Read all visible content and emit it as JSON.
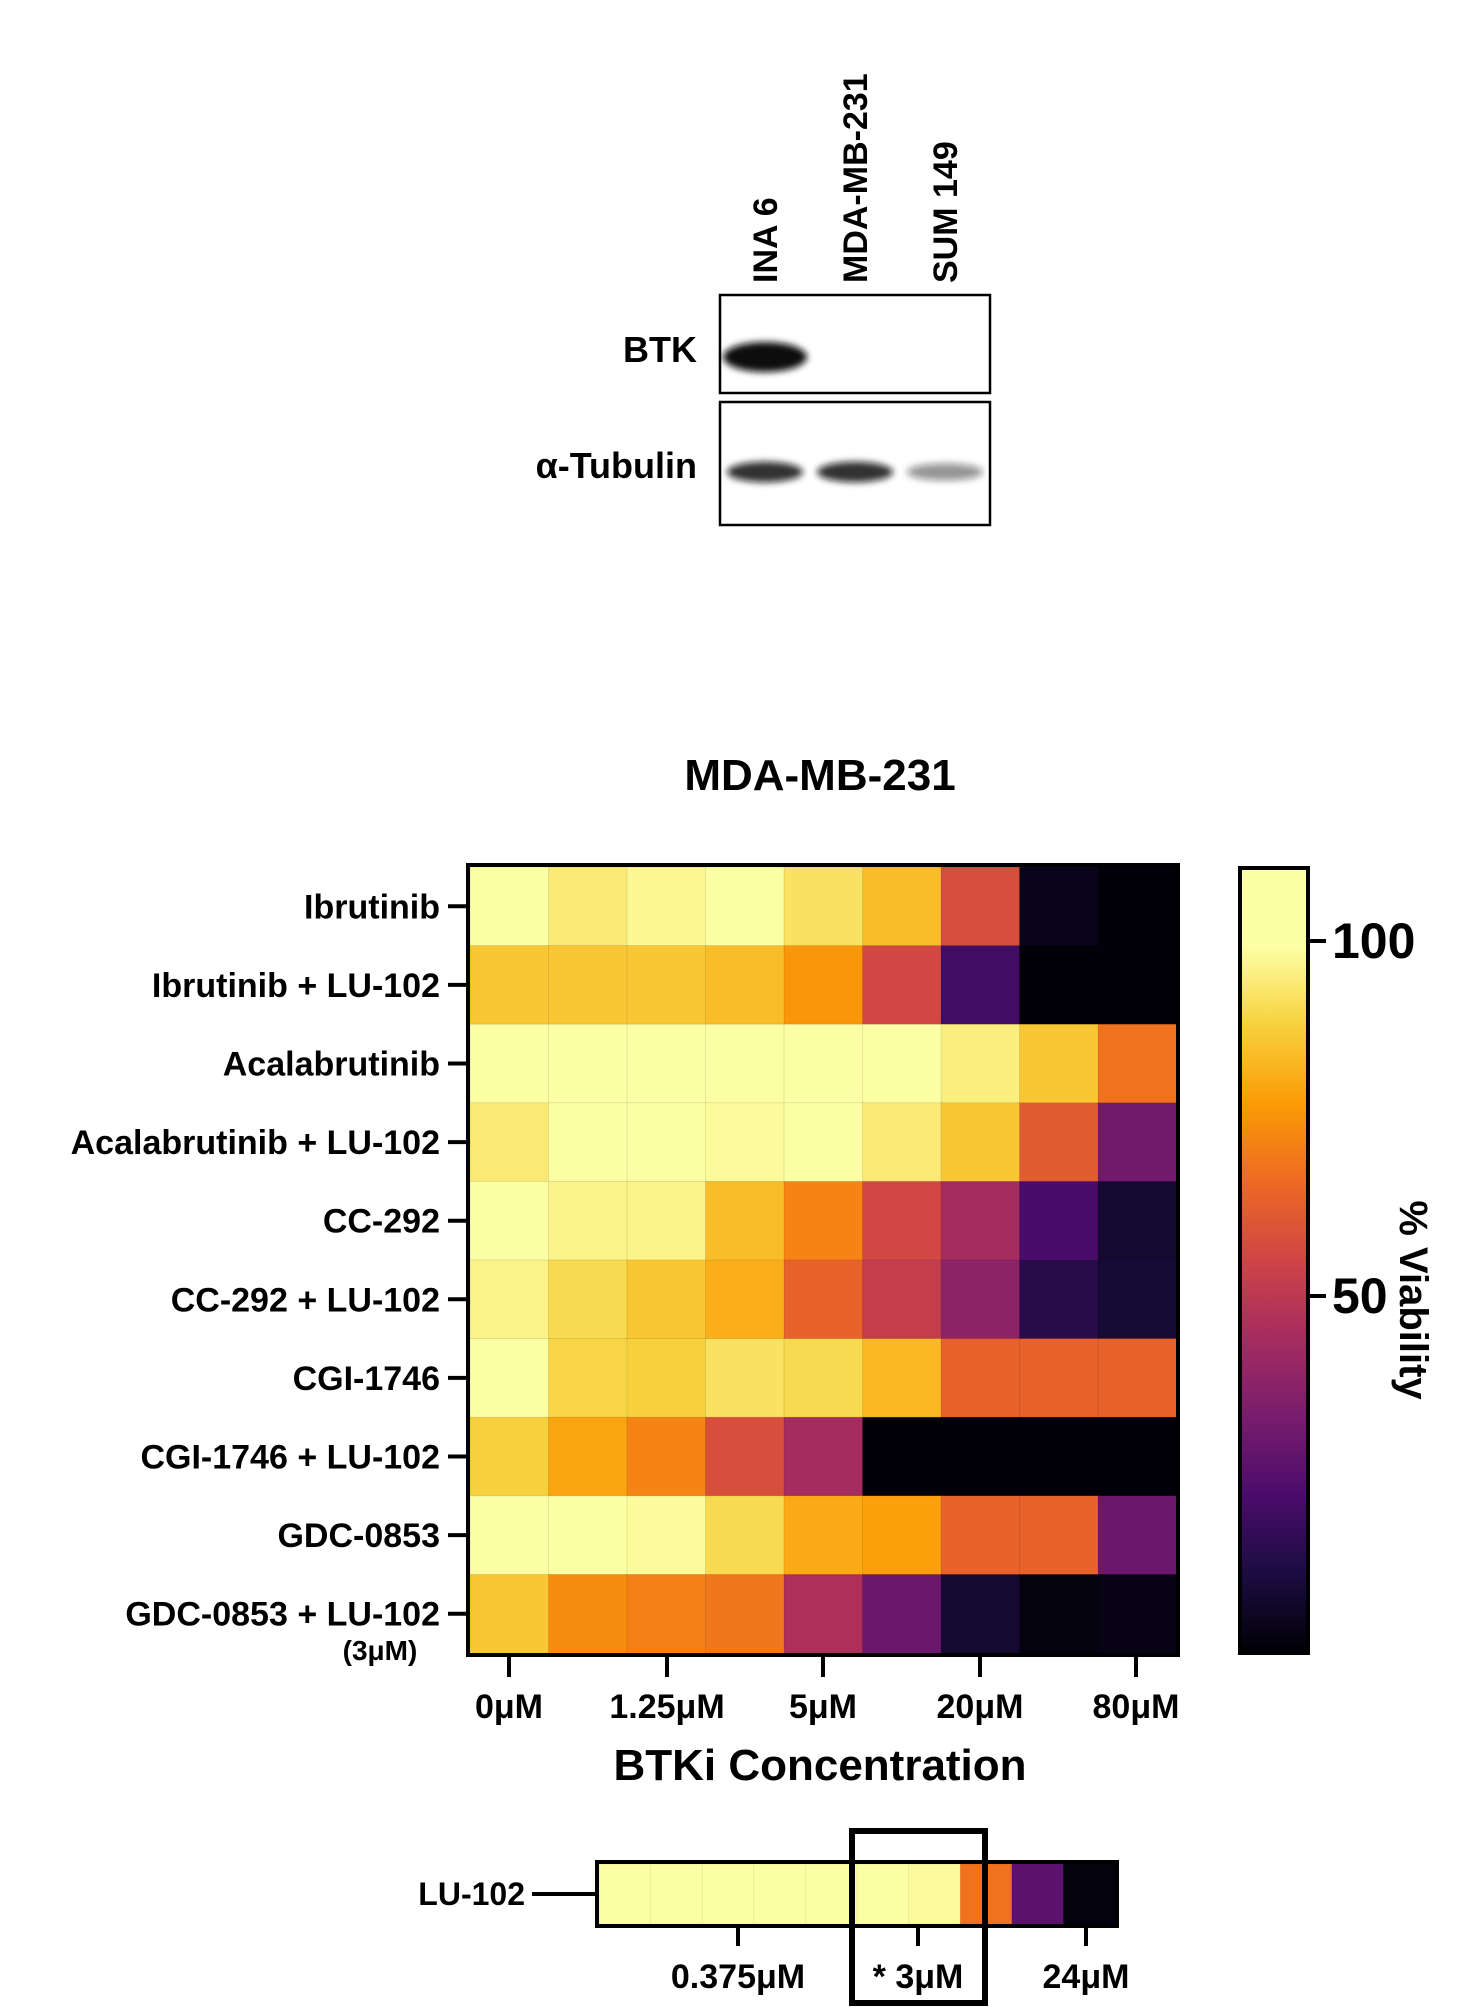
{
  "western_blot": {
    "lanes": [
      "INA 6",
      "MDA-MB-231",
      "SUM 149"
    ],
    "rows": [
      {
        "label": "BTK",
        "band_intensity": [
          1.0,
          0.0,
          0.0
        ]
      },
      {
        "label": "α-Tubulin",
        "band_intensity": [
          0.85,
          0.85,
          0.45
        ]
      }
    ]
  },
  "chart_data": [
    {
      "type": "heatmap",
      "title": "MDA-MB-231",
      "xlabel": "BTKi Concentration",
      "x_tick_labels": [
        "0μM",
        "1.25μM",
        "5μM",
        "20μM",
        "80μM"
      ],
      "rows": [
        "Ibrutinib",
        "Ibrutinib + LU-102",
        "Acalabrutinib",
        "Acalabrutinib + LU-102",
        "CC-292",
        "CC-292 + LU-102",
        "CGI-1746",
        "CGI-1746 + LU-102",
        "GDC-0853",
        "GDC-0853 + LU-102"
      ],
      "row_sublabel": "(3μM)",
      "values": [
        [
          100,
          94,
          97,
          100,
          92,
          84,
          58,
          4,
          1
        ],
        [
          86,
          86,
          86,
          84,
          76,
          56,
          20,
          1,
          1
        ],
        [
          100,
          106,
          110,
          107,
          106,
          105,
          95,
          86,
          68
        ],
        [
          94,
          104,
          99,
          98,
          101,
          94,
          86,
          62,
          31
        ],
        [
          100,
          96,
          96,
          84,
          72,
          56,
          44,
          22,
          8
        ],
        [
          96,
          90,
          86,
          81,
          64,
          52,
          38,
          14,
          9
        ],
        [
          102,
          89,
          88,
          92,
          90,
          83,
          64,
          64,
          64
        ],
        [
          88,
          79,
          72,
          58,
          44,
          1,
          1,
          1,
          1
        ],
        [
          102,
          104,
          98,
          90,
          80,
          78,
          64,
          64,
          30
        ],
        [
          86,
          74,
          71,
          69,
          46,
          30,
          8,
          2,
          3
        ]
      ],
      "colorbar": {
        "label": "% Viability",
        "ticks": [
          100,
          50
        ],
        "range": [
          0,
          110
        ]
      }
    },
    {
      "type": "heatmap",
      "row_label": "LU-102",
      "x_tick_labels": [
        "0.375μM",
        "* 3μM",
        "24μM"
      ],
      "values": [
        106,
        108,
        106,
        104,
        104,
        106,
        98,
        68,
        26,
        2
      ],
      "highlight": "* 3μM"
    }
  ]
}
